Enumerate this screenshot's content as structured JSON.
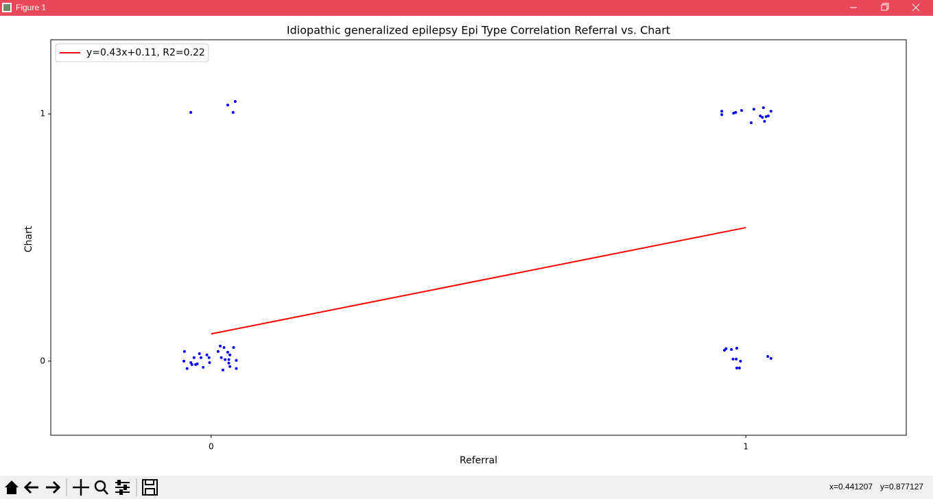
{
  "window": {
    "title": "Figure 1",
    "status": [
      "x=0.441207",
      "y=0.877127"
    ]
  },
  "chart_data": {
    "type": "scatter",
    "title": "Idiopathic generalized epilepsy Epi Type Correlation Referral vs. Chart",
    "xlabel": "Referral",
    "ylabel": "Chart",
    "xlim": [
      -0.3,
      1.3
    ],
    "ylim": [
      -0.3,
      1.3
    ],
    "xticks": [
      0,
      1
    ],
    "yticks": [
      0,
      1
    ],
    "grid": false,
    "legend": "upper left",
    "series": [
      {
        "type": "scatter",
        "color": "#0000ff",
        "x": [
          -0.038,
          0.031,
          0.045,
          0.041,
          0.955,
          0.955,
          0.977,
          0.981,
          0.992,
          1.015,
          1.01,
          1.033,
          1.027,
          1.031,
          1.035,
          1.038,
          1.042,
          1.047,
          -0.05,
          -0.051,
          -0.045,
          -0.038,
          -0.036,
          -0.032,
          -0.029,
          -0.026,
          -0.022,
          -0.019,
          -0.015,
          -0.008,
          -0.004,
          -0.003,
          0.013,
          0.017,
          0.019,
          0.022,
          0.024,
          0.026,
          0.031,
          0.035,
          0.033,
          0.033,
          0.035,
          0.042,
          0.047,
          0.047,
          0.96,
          0.963,
          0.973,
          0.983,
          0.976,
          0.982,
          0.99,
          0.983,
          0.988,
          1.041,
          1.047
        ],
        "values": [
          1.006,
          1.036,
          1.05,
          1.006,
          1.011,
          0.997,
          1.003,
          1.006,
          1.014,
          1.019,
          0.964,
          1.025,
          0.992,
          0.986,
          0.97,
          0.989,
          0.992,
          1.011,
          0.039,
          0,
          -0.03,
          -0.006,
          -0.014,
          0.014,
          -0.014,
          -0.011,
          0.03,
          0.014,
          -0.025,
          0.025,
          0.014,
          -0.006,
          0.039,
          0.061,
          0.014,
          -0.036,
          0.055,
          0.006,
          0.036,
          0.025,
          0.006,
          -0.008,
          -0.022,
          0.055,
          0.003,
          -0.03,
          0.044,
          0.05,
          0.047,
          0.052,
          0.008,
          0.008,
          0,
          -0.028,
          -0.028,
          0.019,
          0.011
        ]
      },
      {
        "type": "line",
        "name": "y=0.43x+0.11, R2=0.22",
        "color": "#ff0000",
        "x": [
          0,
          1
        ],
        "values": [
          0.11,
          0.54
        ]
      }
    ]
  }
}
